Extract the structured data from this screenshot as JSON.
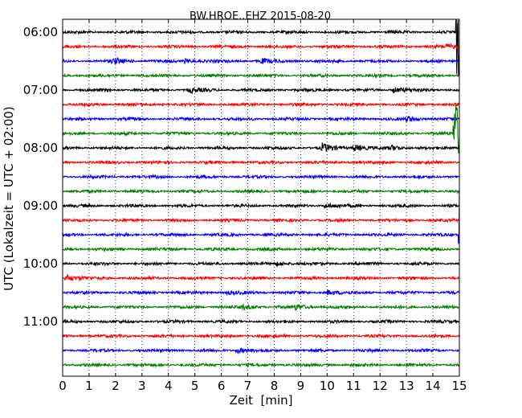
{
  "chart_data": {
    "type": "line",
    "title": "BW.HROE..EHZ 2015-08-20",
    "xlabel": "Zeit  [min]",
    "ylabel": "UTC (Lokalzeit = UTC + 02:00)",
    "xlim": [
      0,
      15
    ],
    "x_ticks": [
      "0",
      "1",
      "2",
      "3",
      "4",
      "5",
      "6",
      "7",
      "8",
      "9",
      "10",
      "11",
      "12",
      "13",
      "14",
      "15"
    ],
    "y_tick_labels": [
      "06:00",
      "07:00",
      "08:00",
      "09:00",
      "10:00",
      "11:00"
    ],
    "trace_rows": [
      "06:00",
      "06:15",
      "06:30",
      "06:45",
      "07:00",
      "07:15",
      "07:30",
      "07:45",
      "08:00",
      "08:15",
      "08:30",
      "08:45",
      "09:00",
      "09:15",
      "09:30",
      "09:45",
      "10:00",
      "10:15",
      "10:30",
      "10:45",
      "11:00",
      "11:15",
      "11:30",
      "11:45"
    ],
    "trace_colors": [
      "#000000",
      "#ff0000",
      "#0000ff",
      "#008000"
    ],
    "grid": {
      "x": true,
      "y": false,
      "style": "dotted"
    },
    "events": [
      {
        "row": "06:30",
        "minute": 1.9,
        "amplitude": 2.0
      },
      {
        "row": "06:30",
        "minute": 4.6,
        "amplitude": 1.6
      },
      {
        "row": "06:30",
        "minute": 7.5,
        "amplitude": 1.6
      },
      {
        "row": "06:15",
        "minute": 14.5,
        "amplitude": 1.4
      },
      {
        "row": "07:00",
        "minute": 4.8,
        "amplitude": 1.6
      },
      {
        "row": "07:00",
        "minute": 12.5,
        "amplitude": 2.0
      },
      {
        "row": "07:30",
        "minute": 13.0,
        "amplitude": 2.0
      },
      {
        "row": "08:00",
        "minute": 9.8,
        "amplitude": 3.2
      },
      {
        "row": "08:00",
        "minute": 11.0,
        "amplitude": 2.6
      },
      {
        "row": "08:00",
        "minute": 12.4,
        "amplitude": 1.6
      },
      {
        "row": "09:00",
        "minute": 9.9,
        "amplitude": 1.8
      },
      {
        "row": "10:00",
        "minute": 8.1,
        "amplitude": 1.4
      },
      {
        "row": "10:15",
        "minute": 0.1,
        "amplitude": 3.0
      },
      {
        "row": "10:30",
        "minute": 10.0,
        "amplitude": 1.8
      },
      {
        "row": "10:30",
        "minute": 6.2,
        "amplitude": 1.0
      },
      {
        "row": "10:45",
        "minute": 6.8,
        "amplitude": 1.4
      },
      {
        "row": "10:45",
        "minute": 8.8,
        "amplitude": 2.0
      },
      {
        "row": "11:30",
        "minute": 6.6,
        "amplitude": 2.0
      },
      {
        "row": "06:00",
        "minute": 14.9,
        "amplitude": 40
      },
      {
        "row": "07:45",
        "minute": 14.8,
        "amplitude": 30
      },
      {
        "row": "09:30",
        "minute": 15.0,
        "amplitude": 35
      }
    ]
  }
}
